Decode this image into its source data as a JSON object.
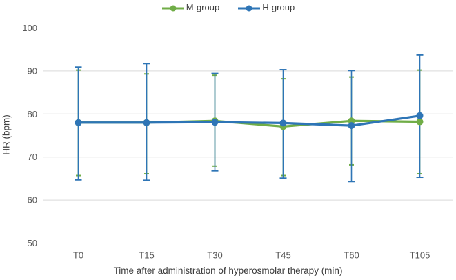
{
  "chart_data": {
    "type": "line",
    "title": "",
    "categories": [
      "T0",
      "T15",
      "T30",
      "T45",
      "T60",
      "T105"
    ],
    "xlabel": "Time after administration of hyperosmolar therapy (min)",
    "ylabel": "HR (bpm)",
    "ylim": [
      50,
      100
    ],
    "yticks": [
      50,
      60,
      70,
      80,
      90,
      100
    ],
    "grid": true,
    "legend_position": "top-center",
    "series": [
      {
        "name": "M-group",
        "color": "#70AD47",
        "marker": "circle",
        "values": [
          78.0,
          78.0,
          78.4,
          77.1,
          78.4,
          78.2
        ],
        "error_upper": [
          90.2,
          89.3,
          89.0,
          88.2,
          88.6,
          90.2
        ],
        "error_lower": [
          65.7,
          66.1,
          67.9,
          65.7,
          68.2,
          66.1
        ]
      },
      {
        "name": "H-group",
        "color": "#2E75B6",
        "marker": "circle",
        "values": [
          78.0,
          78.0,
          78.1,
          77.9,
          77.3,
          79.6
        ],
        "error_upper": [
          90.9,
          91.7,
          89.4,
          90.3,
          90.1,
          93.7
        ],
        "error_lower": [
          64.7,
          64.6,
          66.8,
          65.1,
          64.3,
          65.3
        ]
      }
    ],
    "colors": {
      "gridline": "#D9D9D9",
      "axis_line": "#BFBFBF",
      "tick_label": "#595959",
      "title_text": "#404040"
    }
  }
}
